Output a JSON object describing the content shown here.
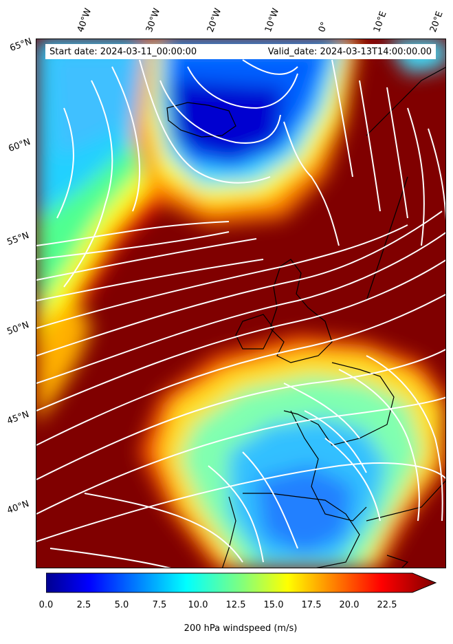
{
  "info": {
    "start": "Start date: 2024-03-11_00:00:00",
    "valid": "Valid_date: 2024-03-13T14:00:00.00"
  },
  "lon_labels": [
    "40°W",
    "30°W",
    "20°W",
    "10°W",
    "0°",
    "10°E",
    "20°E"
  ],
  "lat_labels": [
    "65°N",
    "60°N",
    "55°N",
    "50°N",
    "45°N",
    "40°N"
  ],
  "colorbar": {
    "label": "200 hPa windspeed (m/s)",
    "ticks": [
      "0.0",
      "2.5",
      "5.0",
      "7.5",
      "10.0",
      "12.5",
      "15.0",
      "17.5",
      "20.0",
      "22.5"
    ],
    "range": [
      0,
      25
    ],
    "colormap": "jet",
    "extend": "max"
  },
  "colors": {
    "low": "#00008f",
    "mid": "#7fff7f",
    "high": "#800000",
    "streamline": "#ffffff",
    "coastline": "#000000"
  }
}
